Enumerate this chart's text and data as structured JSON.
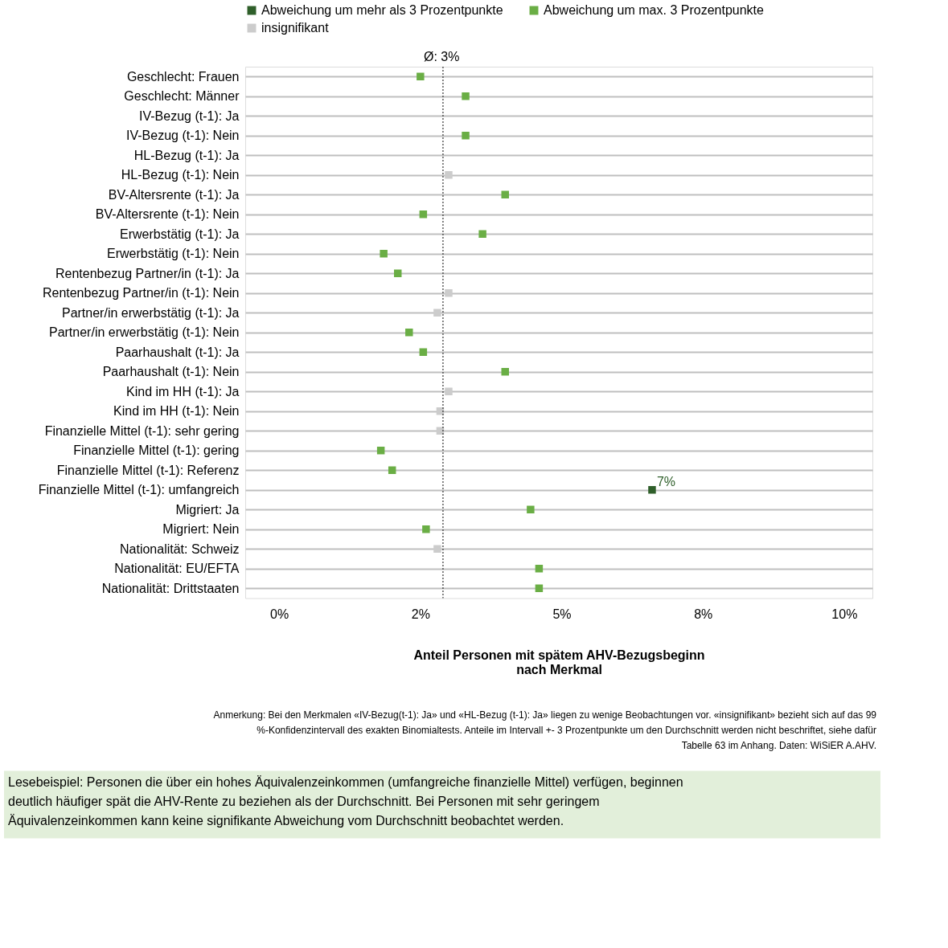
{
  "chart_data": {
    "type": "scatter",
    "orientation": "horizontal",
    "xlabel": "Anteil Personen mit spätem AHV-Bezugsbeginn nach Merkmal",
    "categories": [
      "Geschlecht: Frauen",
      "Geschlecht: Männer",
      "IV-Bezug (t-1): Ja",
      "IV-Bezug (t-1): Nein",
      "HL-Bezug (t-1): Ja",
      "HL-Bezug (t-1): Nein",
      "BV-Altersrente (t-1): Ja",
      "BV-Altersrente (t-1): Nein",
      "Erwerbstätig (t-1): Ja",
      "Erwerbstätig (t-1): Nein",
      "Rentenbezug Partner/in  (t-1): Ja",
      "Rentenbezug Partner/in (t-1): Nein",
      "Partner/in erwerbstätig (t-1): Ja",
      "Partner/in erwerbstätig (t-1): Nein",
      "Paarhaushalt (t-1): Ja",
      "Paarhaushalt (t-1): Nein",
      "Kind im HH (t-1): Ja",
      "Kind im HH (t-1): Nein",
      "Finanzielle Mittel (t-1): sehr gering",
      "Finanzielle Mittel (t-1): gering",
      "Finanzielle Mittel (t-1): Referenz",
      "Finanzielle Mittel (t-1): umfangreich",
      "Migriert: Ja",
      "Migriert: Nein",
      "Nationalität: Schweiz",
      "Nationalität: EU/EFTA",
      "Nationalität: Drittstaaten"
    ],
    "series": [
      {
        "name": "Abweichung um mehr als 3 Prozentpunkte",
        "color": "#2f5f2a",
        "values": [
          null,
          null,
          null,
          null,
          null,
          null,
          null,
          null,
          null,
          null,
          null,
          null,
          null,
          null,
          null,
          null,
          null,
          null,
          null,
          null,
          null,
          6.6,
          null,
          null,
          null,
          null,
          null
        ],
        "value_labels": [
          null,
          null,
          null,
          null,
          null,
          null,
          null,
          null,
          null,
          null,
          null,
          null,
          null,
          null,
          null,
          null,
          null,
          null,
          null,
          null,
          null,
          "7%",
          null,
          null,
          null,
          null,
          null
        ]
      },
      {
        "name": "Abweichung um max. 3 Prozentpunkte",
        "color": "#6aae45",
        "values": [
          2.5,
          3.3,
          null,
          3.3,
          null,
          null,
          4.0,
          2.55,
          3.6,
          1.85,
          2.1,
          null,
          null,
          2.3,
          2.55,
          4.0,
          null,
          null,
          null,
          1.8,
          2.0,
          null,
          4.45,
          2.6,
          null,
          4.6,
          4.6
        ]
      },
      {
        "name": "insignifikant",
        "color": "#cccccc",
        "values": [
          null,
          null,
          null,
          null,
          null,
          3.0,
          null,
          null,
          null,
          null,
          null,
          3.0,
          2.8,
          null,
          null,
          null,
          3.0,
          2.85,
          2.85,
          null,
          null,
          null,
          null,
          null,
          2.8,
          null,
          null
        ]
      }
    ],
    "xlim": [
      -0.6,
      10.5
    ],
    "xticks": [
      {
        "value": 0,
        "label": "0%"
      },
      {
        "value": 2.5,
        "label": "2%"
      },
      {
        "value": 5,
        "label": "5%"
      },
      {
        "value": 7.5,
        "label": "8%"
      },
      {
        "value": 10,
        "label": "10%"
      }
    ],
    "ref_lines": [
      {
        "axis": "x",
        "value": 2.9,
        "label": "Ø: 3%",
        "color": "#333333",
        "line_style": "dotted"
      }
    ],
    "grid": "y",
    "legend": "top",
    "marker": "square",
    "annotations": [
      "Anmerkung: Bei den Merkmalen «IV-Bezug(t-1): Ja» und «HL-Bezug (t-1): Ja» liegen zu wenige Beobachtungen vor. «insignifikant» bezieht sich auf das 99 %-Konfidenzintervall des exakten Binomialtests. Anteile im Intervall +- 3 Prozentpunkte um den Durchschnitt werden nicht beschriftet, siehe dafür Tabelle 63 im Anhang. Daten: WiSiER A.AHV.",
      "Lesebeispiel: Personen die über ein hohes Äquivalenzeinkommen (umfangreiche finanzielle Mittel) verfügen, beginnen deutlich häufiger spät die AHV-Rente zu beziehen als der Durchschnitt. Bei Personen mit sehr geringem Äquivalenzeinkommen kann keine signifikante Abweichung vom Durchschnitt beobachtet werden."
    ]
  }
}
